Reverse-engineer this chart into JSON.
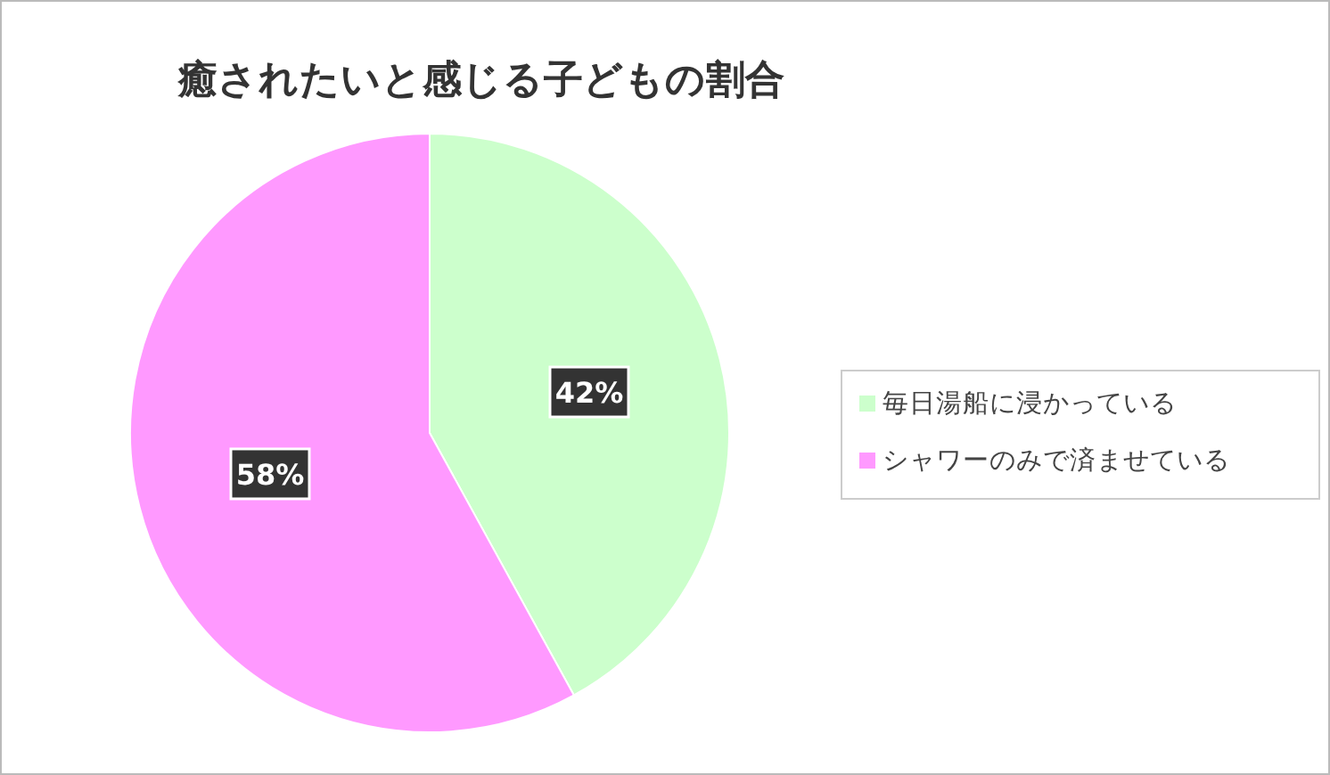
{
  "chart_data": {
    "type": "pie",
    "title": "癒されたいと感じる子どもの割合",
    "categories": [
      "毎日湯船に浸かっている",
      "シャワーのみで済ませている"
    ],
    "values": [
      42,
      58
    ],
    "colors": [
      "#ccffcc",
      "#ff99ff"
    ],
    "value_labels": [
      "42%",
      "58%"
    ],
    "legend": "right"
  }
}
